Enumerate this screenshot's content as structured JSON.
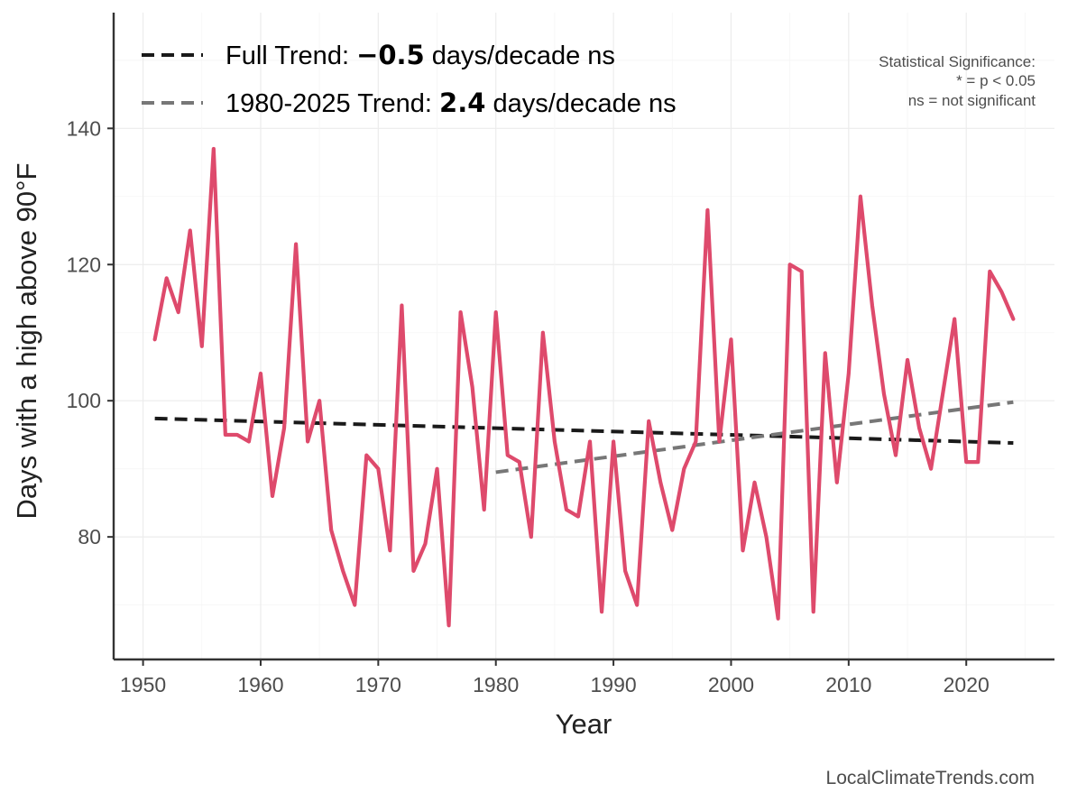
{
  "chart_data": {
    "type": "line",
    "xlabel": "Year",
    "ylabel": "Days with a high above 90°F",
    "xlim": [
      1947.5,
      2027.5
    ],
    "ylim": [
      62,
      157
    ],
    "x_ticks": [
      1950,
      1960,
      1970,
      1980,
      1990,
      2000,
      2010,
      2020
    ],
    "x_tick_labels": [
      "1950",
      "1960",
      "1970",
      "1980",
      "1990",
      "2000",
      "2010",
      "2020"
    ],
    "y_ticks": [
      80,
      100,
      120,
      140
    ],
    "y_tick_labels": [
      "80",
      "100",
      "120",
      "140"
    ],
    "grid": true,
    "series": [
      {
        "name": "Days with a high above 90°F",
        "color": "#de4a6c",
        "x": [
          1951,
          1952,
          1953,
          1954,
          1955,
          1956,
          1957,
          1958,
          1959,
          1960,
          1961,
          1962,
          1963,
          1964,
          1965,
          1966,
          1967,
          1968,
          1969,
          1970,
          1971,
          1972,
          1973,
          1974,
          1975,
          1976,
          1977,
          1978,
          1979,
          1980,
          1981,
          1982,
          1983,
          1984,
          1985,
          1986,
          1987,
          1988,
          1989,
          1990,
          1991,
          1992,
          1993,
          1994,
          1995,
          1996,
          1997,
          1998,
          1999,
          2000,
          2001,
          2002,
          2003,
          2004,
          2005,
          2006,
          2007,
          2008,
          2009,
          2010,
          2011,
          2012,
          2013,
          2014,
          2015,
          2016,
          2017,
          2018,
          2019,
          2020,
          2021,
          2022,
          2023,
          2024
        ],
        "values": [
          109,
          118,
          113,
          125,
          108,
          137,
          95,
          95,
          94,
          104,
          86,
          96,
          123,
          94,
          100,
          81,
          75,
          70,
          92,
          90,
          78,
          114,
          75,
          79,
          90,
          67,
          113,
          102,
          84,
          113,
          92,
          91,
          80,
          110,
          94,
          84,
          83,
          94,
          69,
          94,
          75,
          70,
          97,
          88,
          81,
          90,
          94,
          128,
          94,
          109,
          78,
          88,
          80,
          68,
          120,
          119,
          69,
          107,
          88,
          104,
          130,
          114,
          101,
          92,
          106,
          96,
          90,
          101,
          112,
          91,
          91,
          119,
          116,
          112
        ]
      }
    ],
    "trends": [
      {
        "name": "Full Trend",
        "label_prefix": "Full Trend: ",
        "label_value": "−0.5",
        "label_suffix": " days/decade ns",
        "color": "#1a1a1a",
        "x": [
          1951,
          2024
        ],
        "values": [
          97.4,
          93.8
        ]
      },
      {
        "name": "1980-2025 Trend",
        "label_prefix": "1980-2025 Trend: ",
        "label_value": "2.4",
        "label_suffix": " days/decade ns",
        "color": "#777777",
        "x": [
          1980,
          2024
        ],
        "values": [
          89.5,
          99.8
        ]
      }
    ],
    "annotation": {
      "lines": [
        "Statistical Significance:",
        "* = p < 0.05",
        "ns = not significant"
      ]
    },
    "source": "LocalClimateTrends.com"
  }
}
